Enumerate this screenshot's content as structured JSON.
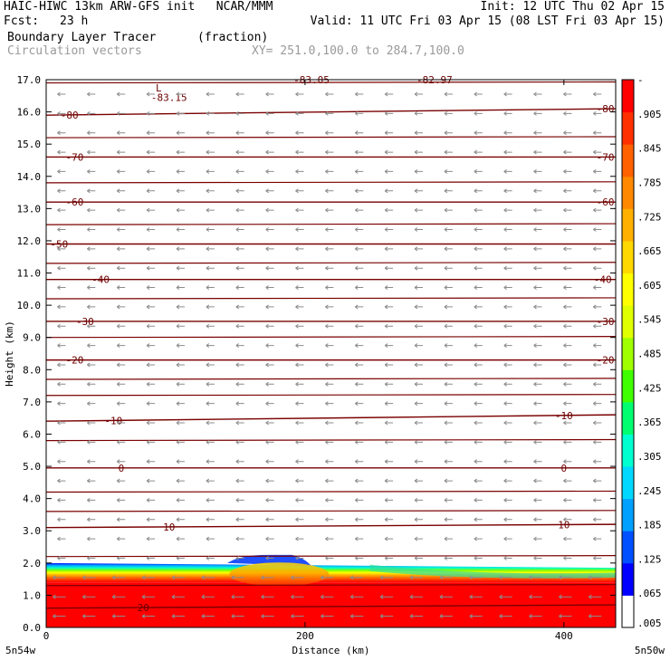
{
  "header": {
    "title": "HAIC-HIWC 13km ARW-GFS init   NCAR/MMM",
    "init": "Init: 12 UTC Thu 02 Apr 15",
    "fcst_label": "Fcst:",
    "fcst": "23 h",
    "valid": "Valid: 11 UTC Fri 03 Apr 15 (08 LST Fri 03 Apr 15)",
    "field": "Boundary Layer Tracer",
    "units": "(fraction)",
    "vectors": "Circulation vectors",
    "xy": "XY= 251.0,100.0 to 284.7,100.0"
  },
  "colors": {
    "contour": "#7a0000",
    "vector": "#8c8c8c",
    "scale": [
      "#ffffff",
      "#0000ff",
      "#0050ff",
      "#00a0ff",
      "#00d8ff",
      "#00ffd0",
      "#00ff70",
      "#40ff00",
      "#a0ff00",
      "#e0ff00",
      "#ffff00",
      "#ffd800",
      "#ffb000",
      "#ff8800",
      "#ff6000",
      "#ff3000",
      "#ff0000"
    ]
  },
  "chart_data": {
    "type": "heatmap",
    "xlabel": "Distance (km)",
    "ylabel": "Height (km)",
    "xlim": [
      0,
      440
    ],
    "ylim": [
      0,
      17
    ],
    "x_ticks": [
      0,
      200,
      400
    ],
    "y_ticks": [
      "0.0",
      "1.0",
      "2.0",
      "3.0",
      "4.0",
      "5.0",
      "6.0",
      "7.0",
      "8.0",
      "9.0",
      "10.0",
      "11.0",
      "12.0",
      "13.0",
      "14.0",
      "15.0",
      "16.0",
      "17.0"
    ],
    "x_endpoint_labels": {
      "left": "5n54w",
      "right": "5n50w"
    },
    "colorbar": {
      "labels": [
        "-",
        ".905",
        ".845",
        ".785",
        ".725",
        ".665",
        ".605",
        ".545",
        ".485",
        ".425",
        ".365",
        ".305",
        ".245",
        ".185",
        ".125",
        ".065",
        ".005"
      ]
    },
    "field_regions": [
      {
        "desc": "boundary layer tracer near 1.0",
        "x": [
          0,
          440
        ],
        "z": [
          0,
          1.4
        ]
      },
      {
        "desc": "transition zone",
        "z": [
          1.4,
          1.9
        ]
      },
      {
        "desc": "elevated bump",
        "x": [
          140,
          200
        ],
        "z": [
          1.9,
          2.2
        ]
      }
    ],
    "temperature_contours": [
      {
        "label": "-80",
        "z_left": 15.9,
        "z_right": 16.1,
        "label_x": [
          18,
          432
        ]
      },
      {
        "label": "-70",
        "z_left": 14.6,
        "z_right": 14.6,
        "label_x": [
          22,
          432
        ]
      },
      {
        "label": "-60",
        "z_left": 13.2,
        "z_right": 13.2,
        "label_x": [
          22,
          432
        ]
      },
      {
        "label": "-50",
        "z_left": 11.9,
        "z_right": 11.9,
        "label_x": [
          10,
          null
        ]
      },
      {
        "label": "-40",
        "z_left": 10.8,
        "z_right": 10.8,
        "label_x": [
          42,
          430
        ]
      },
      {
        "label": "-30",
        "z_left": 9.5,
        "z_right": 9.5,
        "label_x": [
          30,
          432
        ]
      },
      {
        "label": "-20",
        "z_left": 8.3,
        "z_right": 8.3,
        "label_x": [
          22,
          432
        ]
      },
      {
        "label": "-10",
        "z_left": 6.4,
        "z_right": 6.6,
        "label_x": [
          52,
          400
        ]
      },
      {
        "label": "0",
        "z_left": 4.95,
        "z_right": 4.95,
        "label_x": [
          58,
          400
        ]
      },
      {
        "label": "10",
        "z_left": 3.1,
        "z_right": 3.2,
        "label_x": [
          95,
          400
        ]
      },
      {
        "label": "20",
        "z_left": 0.6,
        "z_right": 0.7,
        "label_x": [
          75,
          null
        ]
      }
    ],
    "extra_contour_levels": [
      16.9,
      15.2,
      13.8,
      12.5,
      11.3,
      10.2,
      9.0,
      7.7,
      7.2,
      5.8,
      4.2,
      3.6,
      2.2,
      1.3
    ],
    "annotations": [
      {
        "text": "L",
        "x": 87,
        "z": 16.75
      },
      {
        "text": "-83.15",
        "x": 95,
        "z": 16.45
      },
      {
        "text": "-83.05",
        "x": 205,
        "z": 17.0
      },
      {
        "text": "-82.97",
        "x": 300,
        "z": 17.0
      }
    ],
    "vectors": {
      "direction": "westward",
      "speed_low": "stronger below 2 km"
    }
  }
}
